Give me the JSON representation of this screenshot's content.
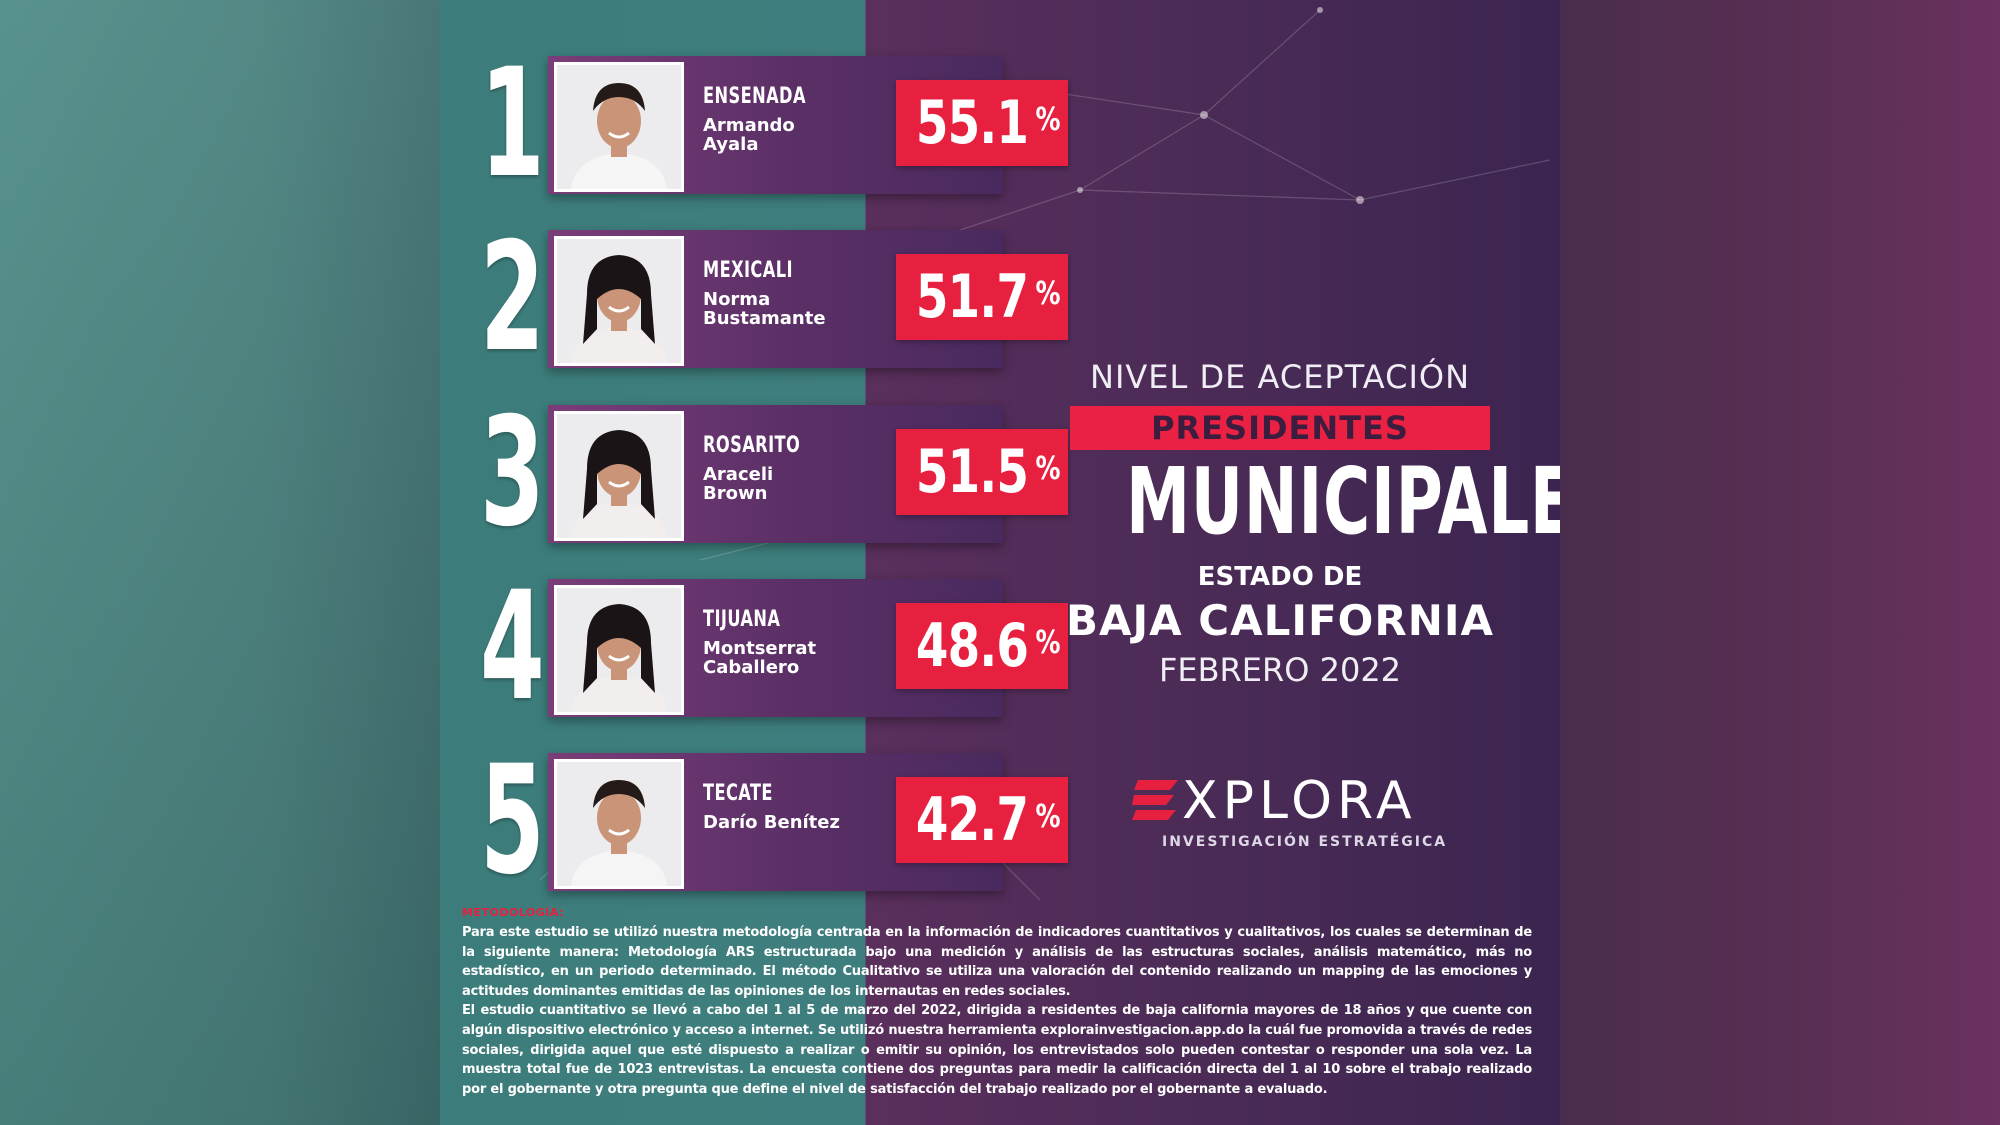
{
  "chart_data": {
    "type": "bar",
    "title": "NIVEL DE ACEPTACIÓN",
    "subtitle_badge": "PRESIDENTES",
    "subtitle_main": "MUNICIPALES",
    "region_line1": "ESTADO DE",
    "region_line2": "BAJA CALIFORNIA",
    "date": "FEBRERO 2022",
    "categories": [
      "ENSENADA",
      "MEXICALI",
      "ROSARITO",
      "TIJUANA",
      "TECATE"
    ],
    "values": [
      55.1,
      51.7,
      51.5,
      48.6,
      42.7
    ],
    "unit": "%",
    "items": [
      {
        "rank": "1",
        "city": "ENSENADA",
        "name": "Armando\nAyala",
        "value": "55.1",
        "gender": "m"
      },
      {
        "rank": "2",
        "city": "MEXICALI",
        "name": "Norma\nBustamante",
        "value": "51.7",
        "gender": "f"
      },
      {
        "rank": "3",
        "city": "ROSARITO",
        "name": "Araceli\nBrown",
        "value": "51.5",
        "gender": "f"
      },
      {
        "rank": "4",
        "city": "TIJUANA",
        "name": "Montserrat\nCaballero",
        "value": "48.6",
        "gender": "f"
      },
      {
        "rank": "5",
        "city": "TECATE",
        "name": "Darío Benítez",
        "value": "42.7",
        "gender": "m"
      }
    ]
  },
  "brand": {
    "word": "XPLORA",
    "tagline": "INVESTIGACIÓN ESTRATÉGICA",
    "accent": "#e8203f"
  },
  "methodology": {
    "title": "METODOLOGÍA:",
    "paragraph1": "Para este estudio se utilizó nuestra metodología centrada en la información de indicadores cuantitativos y cualitativos, los cuales se determinan de la siguiente manera: Metodología ARS estructurada bajo una medición y análisis de las estructuras sociales, análisis matemático, más no estadístico, en un periodo determinado. El método Cualitativo se utiliza una valoración del contenido realizando un mapping de las emociones y actitudes dominantes emitidas de las opiniones de los internautas en redes sociales.",
    "paragraph2": "El estudio cuantitativo se llevó a cabo del 1 al 5 de marzo del 2022, dirigida a residentes de baja california mayores de 18 años y que cuente con algún dispositivo electrónico y acceso a internet. Se utilizó nuestra herramienta explorainvestigacion.app.do la cuál fue promovida a través de redes sociales, dirigida aquel que esté dispuesto a realizar o emitir su opinión, los entrevistados solo pueden contestar o responder una sola vez. La muestra total fue de 1023 entrevistas. La encuesta contiene dos preguntas para medir la calificación directa del 1 al 10 sobre el trabajo realizado por el gobernante y otra pregunta que define el nivel de satisfacción del trabajo realizado por el gobernante a evaluado."
  }
}
